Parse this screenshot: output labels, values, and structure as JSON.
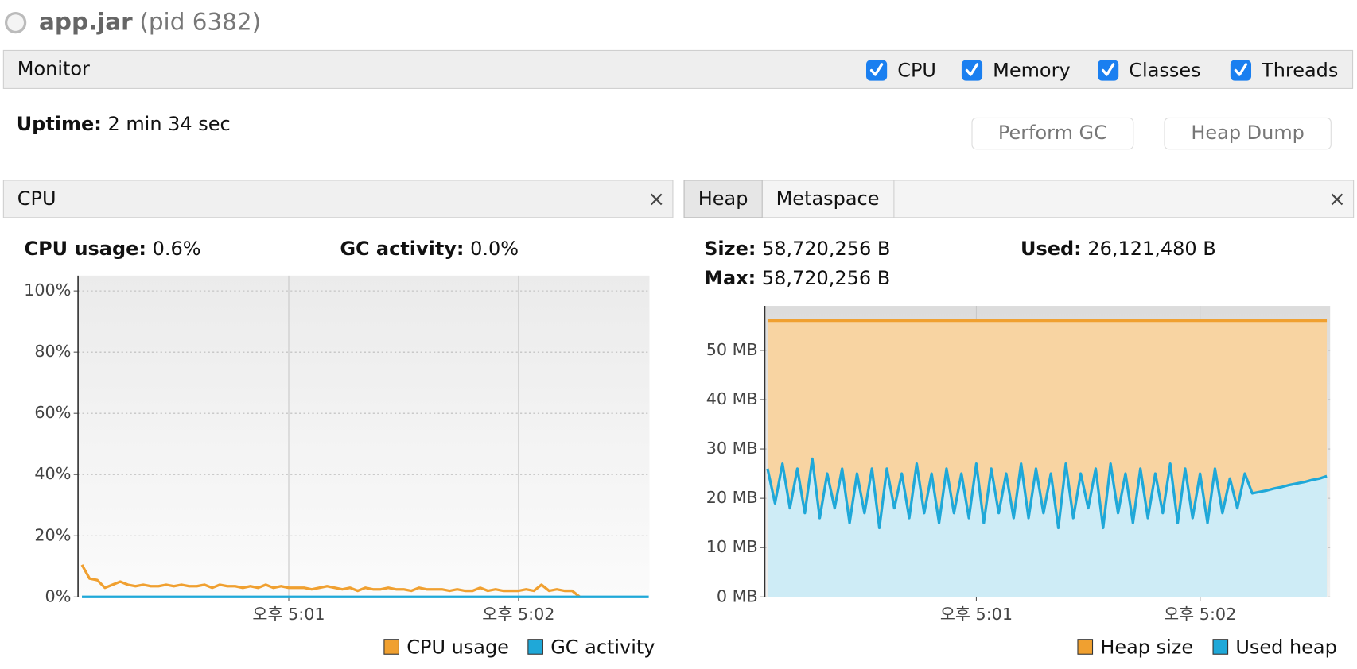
{
  "header": {
    "app": "app.jar",
    "pid": "(pid 6382)"
  },
  "toolbar": {
    "title": "Monitor",
    "checkboxes": [
      "CPU",
      "Memory",
      "Classes",
      "Threads"
    ]
  },
  "uptime": {
    "label": "Uptime:",
    "value": "2 min 34 sec"
  },
  "buttons": [
    "Perform GC",
    "Heap Dump"
  ],
  "cpu_panel": {
    "tab": "CPU",
    "stats": [
      {
        "label": "CPU usage:",
        "value": "0.6%"
      },
      {
        "label": "GC activity:",
        "value": "0.0%"
      }
    ]
  },
  "heap_panel": {
    "tabs": [
      "Heap",
      "Metaspace"
    ],
    "stats": [
      {
        "label": "Size:",
        "value": "58,720,256 B"
      },
      {
        "label": "Used:",
        "value": "26,121,480 B"
      },
      {
        "label": "Max:",
        "value": "58,720,256 B"
      }
    ]
  },
  "chart_data": [
    {
      "type": "line",
      "categories": [
        null,
        null,
        null,
        null,
        null,
        null,
        null,
        null,
        null,
        null,
        null,
        null,
        null,
        null,
        null,
        null,
        null,
        null,
        null,
        null,
        null,
        null,
        null,
        null,
        null,
        null,
        null,
        "오후 5:01",
        null,
        null,
        null,
        null,
        null,
        null,
        null,
        null,
        null,
        null,
        null,
        null,
        null,
        null,
        null,
        null,
        null,
        null,
        null,
        null,
        null,
        null,
        null,
        null,
        null,
        null,
        null,
        null,
        null,
        "오후 5:02",
        null,
        null,
        null,
        null,
        null,
        null,
        null,
        null,
        null,
        null,
        null,
        null,
        null,
        null,
        null,
        null,
        null
      ],
      "series": [
        {
          "name": "CPU usage",
          "color": "#f0a030",
          "values": [
            10.5,
            6,
            5.5,
            3,
            4,
            5,
            4,
            3.5,
            4,
            3.5,
            3.5,
            4,
            3.5,
            4,
            3.5,
            3.5,
            4,
            3,
            4,
            3.5,
            3.5,
            3,
            3.5,
            3,
            4,
            3,
            3.5,
            3,
            3,
            3,
            2.5,
            3,
            3.5,
            3,
            2.5,
            3,
            2,
            3,
            2.5,
            2.5,
            3,
            2.5,
            2.5,
            2,
            3,
            2.5,
            2.5,
            2.5,
            2,
            2.5,
            2,
            2,
            3,
            2,
            2.5,
            2,
            2,
            2,
            2.5,
            2,
            4,
            2,
            2.5,
            2,
            2,
            0,
            null,
            null,
            null,
            null,
            null,
            null,
            null,
            null,
            null
          ]
        },
        {
          "name": "GC activity",
          "color": "#1fa8d8",
          "values": [
            0,
            0,
            0,
            0,
            0,
            0,
            0,
            0,
            0,
            0,
            0,
            0,
            0,
            0,
            0,
            0,
            0,
            0,
            0,
            0,
            0,
            0,
            0,
            0,
            0,
            0,
            0,
            0,
            0,
            0,
            0,
            0,
            0,
            0,
            0,
            0,
            0,
            0,
            0,
            0,
            0,
            0,
            0,
            0,
            0,
            0,
            0,
            0,
            0,
            0,
            0,
            0,
            0,
            0,
            0,
            0,
            0,
            0,
            0,
            0,
            0,
            0,
            0,
            0,
            0,
            0,
            0,
            0,
            0,
            0,
            0,
            0,
            0,
            0,
            0
          ]
        }
      ],
      "ylim": [
        0,
        105
      ],
      "yticks": [
        {
          "value": 0,
          "label": "0%"
        },
        {
          "value": 20,
          "label": "20%"
        },
        {
          "value": 40,
          "label": "40%"
        },
        {
          "value": 60,
          "label": "60%"
        },
        {
          "value": 80,
          "label": "80%"
        },
        {
          "value": 100,
          "label": "100%"
        }
      ],
      "grid": true
    },
    {
      "type": "area",
      "categories": [
        null,
        null,
        null,
        null,
        null,
        null,
        null,
        null,
        null,
        null,
        null,
        null,
        null,
        null,
        null,
        null,
        null,
        null,
        null,
        null,
        null,
        null,
        null,
        null,
        null,
        null,
        null,
        null,
        "오후 5:01",
        null,
        null,
        null,
        null,
        null,
        null,
        null,
        null,
        null,
        null,
        null,
        null,
        null,
        null,
        null,
        null,
        null,
        null,
        null,
        null,
        null,
        null,
        null,
        null,
        null,
        null,
        null,
        null,
        null,
        "오후 5:02",
        null,
        null,
        null,
        null,
        null,
        null,
        null,
        null,
        null,
        null,
        null,
        null,
        null,
        null,
        null,
        null,
        null
      ],
      "series": [
        {
          "name": "Heap size",
          "color": "#f0a030",
          "values": [
            56,
            56,
            56,
            56,
            56,
            56,
            56,
            56,
            56,
            56,
            56,
            56,
            56,
            56,
            56,
            56,
            56,
            56,
            56,
            56,
            56,
            56,
            56,
            56,
            56,
            56,
            56,
            56,
            56,
            56,
            56,
            56,
            56,
            56,
            56,
            56,
            56,
            56,
            56,
            56,
            56,
            56,
            56,
            56,
            56,
            56,
            56,
            56,
            56,
            56,
            56,
            56,
            56,
            56,
            56,
            56,
            56,
            56,
            56,
            56,
            56,
            56,
            56,
            56,
            56,
            56,
            56,
            56,
            56,
            56,
            56,
            56,
            56,
            56,
            56,
            56
          ]
        },
        {
          "name": "Used heap",
          "color": "#1fa8d8",
          "values": [
            26,
            19,
            27,
            18,
            26,
            17,
            28,
            16,
            25,
            18,
            26,
            15,
            25,
            17,
            26,
            14,
            26,
            18,
            25,
            16,
            27,
            17,
            25,
            15,
            26,
            17,
            25,
            16,
            27,
            15,
            26,
            17,
            25,
            16,
            27,
            16,
            26,
            17,
            25,
            14,
            27,
            16,
            25,
            18,
            26,
            14,
            27,
            17,
            25,
            15,
            26,
            16,
            25,
            17,
            27,
            15,
            26,
            16,
            25,
            15,
            26,
            17,
            24,
            18,
            25,
            21,
            21.3,
            21.6,
            22,
            22.3,
            22.7,
            23,
            23.3,
            23.7,
            24,
            24.5
          ]
        }
      ],
      "ylim": [
        0,
        59
      ],
      "yticks": [
        {
          "value": 0,
          "label": "0 MB"
        },
        {
          "value": 10,
          "label": "10 MB"
        },
        {
          "value": 20,
          "label": "20 MB"
        },
        {
          "value": 30,
          "label": "30 MB"
        },
        {
          "value": 40,
          "label": "40 MB"
        },
        {
          "value": 50,
          "label": "50 MB"
        }
      ],
      "grid": true
    }
  ]
}
